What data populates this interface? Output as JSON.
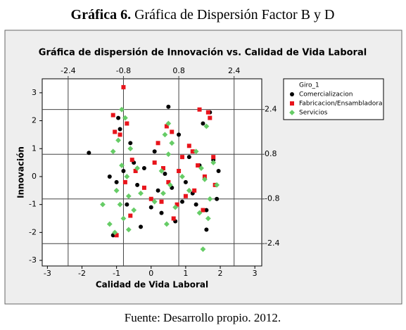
{
  "caption_label": "Gráfica 6.",
  "caption_text": "Gráfica de Dispersión Factor B y D",
  "source": "Fuente: Desarrollo propio. 2012.",
  "chart_data": {
    "type": "scatter",
    "title": "Gráfica de dispersión de Innovación vs. Calidad de Vida Laboral",
    "xlabel": "Calidad de Vida Laboral",
    "ylabel": "Innovación",
    "xlim": [
      -3.15,
      3.2
    ],
    "ylim": [
      -3.2,
      3.5
    ],
    "xticks": [
      -3,
      -2,
      -1,
      0,
      1,
      2,
      3
    ],
    "yticks": [
      -3,
      -2,
      -1,
      0,
      1,
      2,
      3
    ],
    "reference_lines": {
      "x": [
        -2.4,
        -0.8,
        0.8,
        2.4
      ],
      "y": [
        -2.4,
        -0.8,
        0.8,
        2.4
      ]
    },
    "legend_title": "Giro_1",
    "legend": "upper right outside",
    "series": [
      {
        "name": "Comercializacion",
        "color": "#000000",
        "marker": "circle",
        "x": [
          -1.8,
          -1.1,
          -0.9,
          -0.7,
          -0.5,
          -0.3,
          -0.2,
          0.1,
          0.3,
          0.5,
          0.6,
          0.8,
          1.0,
          1.2,
          1.4,
          1.6,
          1.7,
          1.9,
          -1.0,
          -0.8,
          -0.6,
          0.2,
          0.4,
          0.7,
          1.1,
          1.3,
          1.5,
          1.8,
          -1.2,
          -0.4,
          0.0,
          0.9,
          1.6,
          1.95,
          -0.95
        ],
        "values": [
          0.85,
          -2.1,
          1.7,
          -1.0,
          0.5,
          -1.8,
          0.3,
          0.9,
          -1.3,
          2.5,
          -0.4,
          1.5,
          -0.2,
          -0.6,
          0.4,
          -1.2,
          2.3,
          -0.8,
          -0.2,
          0.2,
          1.2,
          -0.5,
          0.1,
          -1.6,
          0.7,
          -1.0,
          1.9,
          0.6,
          0.0,
          -0.3,
          -1.1,
          -0.9,
          -1.9,
          0.2,
          2.1
        ]
      },
      {
        "name": "Fabricacion/Ensambladora",
        "color": "#e8141b",
        "marker": "square",
        "x": [
          -1.1,
          -1.0,
          -0.8,
          -0.7,
          -0.55,
          -0.2,
          0.0,
          0.2,
          0.35,
          0.5,
          0.6,
          0.75,
          0.9,
          1.1,
          1.25,
          1.4,
          1.55,
          1.7,
          1.85,
          -0.9,
          -0.6,
          -0.45,
          0.1,
          0.3,
          0.45,
          0.8,
          1.0,
          1.2,
          1.5,
          1.8,
          -0.75,
          -1.05,
          0.65,
          1.35,
          1.65
        ],
        "values": [
          2.2,
          -2.1,
          3.2,
          1.9,
          0.6,
          -0.4,
          -0.8,
          1.2,
          0.3,
          -0.2,
          1.6,
          -1.0,
          0.7,
          1.1,
          -0.5,
          2.4,
          0.0,
          2.1,
          -0.3,
          1.5,
          -1.4,
          0.2,
          0.5,
          -0.9,
          1.8,
          0.2,
          -0.7,
          0.9,
          -1.2,
          0.7,
          -0.2,
          1.6,
          -1.5,
          0.4,
          2.3
        ]
      },
      {
        "name": "Servicios",
        "color": "#66cc66",
        "marker": "diamond",
        "x": [
          -1.2,
          -1.1,
          -1.0,
          -0.95,
          -0.9,
          -0.85,
          -0.8,
          -0.75,
          -0.7,
          -0.65,
          -0.6,
          -0.5,
          -0.4,
          -0.3,
          0.1,
          0.3,
          0.4,
          0.45,
          0.5,
          0.55,
          0.6,
          0.7,
          0.9,
          1.1,
          1.3,
          1.4,
          1.5,
          1.55,
          1.6,
          1.7,
          1.8,
          1.9,
          -1.05,
          -0.85,
          -0.65,
          0.35,
          0.5,
          1.45,
          1.65,
          -1.4
        ],
        "values": [
          -1.7,
          0.9,
          -0.5,
          1.3,
          -1.0,
          0.4,
          -1.5,
          2.1,
          0.0,
          -0.7,
          1.0,
          -1.2,
          0.3,
          -0.6,
          -0.9,
          0.2,
          1.5,
          -1.7,
          0.8,
          -0.3,
          1.2,
          -1.1,
          0.0,
          -0.5,
          0.9,
          -1.3,
          -2.6,
          -0.1,
          1.8,
          -0.8,
          0.5,
          -0.3,
          -2.0,
          2.4,
          -1.9,
          -0.6,
          1.9,
          0.3,
          -1.5,
          -1.0
        ]
      }
    ]
  }
}
